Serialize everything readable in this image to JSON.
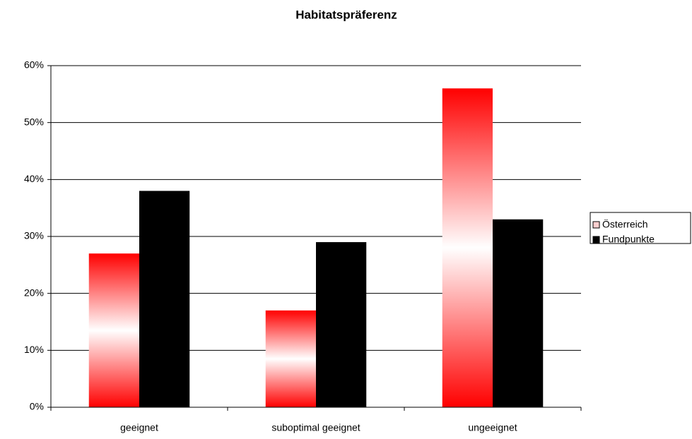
{
  "chart_data": {
    "type": "bar",
    "title": "Habitatspräferenz",
    "categories": [
      "geeignet",
      "suboptimal geeignet",
      "ungeeignet"
    ],
    "series": [
      {
        "name": "Österreich",
        "color": "#ff0000",
        "values": [
          27,
          17,
          56
        ]
      },
      {
        "name": "Fundpunkte",
        "color": "#000000",
        "values": [
          38,
          29,
          33
        ]
      }
    ],
    "ylim": [
      0,
      60
    ],
    "yticks": [
      {
        "value": 0,
        "label": "0%"
      },
      {
        "value": 10,
        "label": "10%"
      },
      {
        "value": 20,
        "label": "20%"
      },
      {
        "value": 30,
        "label": "30%"
      },
      {
        "value": 40,
        "label": "40%"
      },
      {
        "value": 50,
        "label": "50%"
      },
      {
        "value": 60,
        "label": "60%"
      }
    ],
    "grid": true,
    "legend": "right"
  }
}
